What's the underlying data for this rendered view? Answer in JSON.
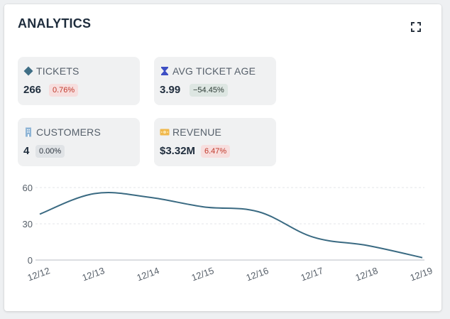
{
  "header": {
    "title": "ANALYTICS"
  },
  "metrics": [
    {
      "label": "TICKETS",
      "value": "266",
      "change": "0.76%",
      "change_tone": "red",
      "icon": "diamond-icon",
      "icon_color": "#3f6e85"
    },
    {
      "label": "AVG TICKET AGE",
      "value": "3.99",
      "change": "−54.45%",
      "change_tone": "green",
      "icon": "hourglass-icon",
      "icon_color": "#3d4fc4"
    },
    {
      "label": "CUSTOMERS",
      "value": "4",
      "change": "0.00%",
      "change_tone": "gray",
      "icon": "building-icon",
      "icon_color": "#8fb5d6"
    },
    {
      "label": "REVENUE",
      "value": "$3.32M",
      "change": "6.47%",
      "change_tone": "red",
      "icon": "money-icon",
      "icon_color": "#f0b84c"
    }
  ],
  "chart_data": {
    "type": "line",
    "x": [
      "12/12",
      "12/13",
      "12/14",
      "12/15",
      "12/16",
      "12/17",
      "12/18",
      "12/19"
    ],
    "series": [
      {
        "values": [
          38,
          55,
          52,
          44,
          40,
          19,
          12,
          2
        ]
      }
    ],
    "ylim": [
      0,
      60
    ],
    "yticks": [
      0,
      30,
      60
    ],
    "grid": true,
    "line_color": "#3a6a82",
    "title": "",
    "xlabel": "",
    "ylabel": ""
  }
}
